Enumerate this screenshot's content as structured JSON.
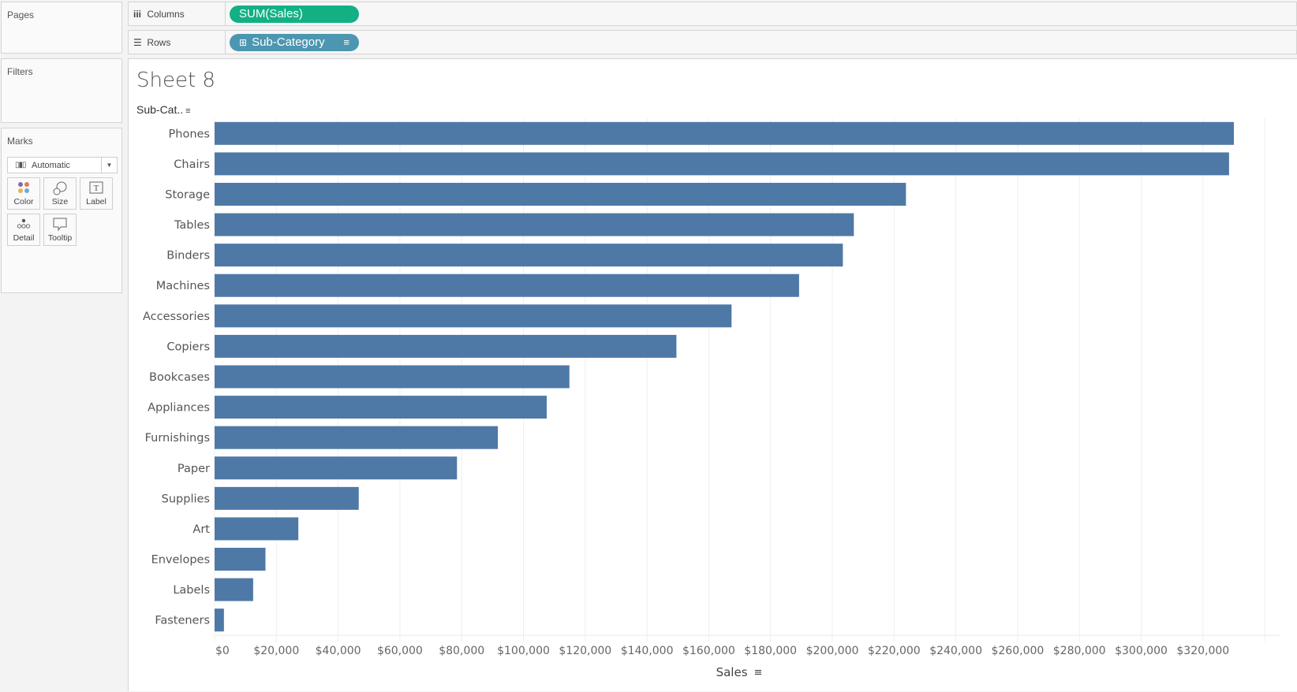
{
  "left_panel": {
    "pages_title": "Pages",
    "filters_title": "Filters",
    "marks_title": "Marks",
    "mark_type": "Automatic",
    "mark_buttons": [
      {
        "label": "Color",
        "icon": "color-icon"
      },
      {
        "label": "Size",
        "icon": "size-icon"
      },
      {
        "label": "Label",
        "icon": "label-icon"
      },
      {
        "label": "Detail",
        "icon": "detail-icon"
      },
      {
        "label": "Tooltip",
        "icon": "tooltip-icon"
      }
    ]
  },
  "shelves": {
    "columns_label": "Columns",
    "columns_pill": "SUM(Sales)",
    "rows_label": "Rows",
    "rows_pill": "Sub-Category"
  },
  "colors": {
    "bar": "#4e79a7",
    "columns_pill": "#13b084",
    "rows_pill": "#4d96b1"
  },
  "sheet": {
    "title": "Sheet 8",
    "row_header": "Sub-Cat.."
  },
  "chart_data": {
    "type": "bar",
    "orientation": "horizontal",
    "title": "Sheet 8",
    "xlabel": "Sales",
    "ylabel": "Sub-Category",
    "categories": [
      "Phones",
      "Chairs",
      "Storage",
      "Tables",
      "Binders",
      "Machines",
      "Accessories",
      "Copiers",
      "Bookcases",
      "Appliances",
      "Furnishings",
      "Paper",
      "Supplies",
      "Art",
      "Envelopes",
      "Labels",
      "Fasteners"
    ],
    "values": [
      330007,
      328449,
      223844,
      206966,
      203413,
      189239,
      167380,
      149528,
      114880,
      107532,
      91705,
      78479,
      46674,
      27119,
      16476,
      12486,
      3024
    ],
    "xlim": [
      0,
      340000
    ],
    "xticks": [
      0,
      20000,
      40000,
      60000,
      80000,
      100000,
      120000,
      140000,
      160000,
      180000,
      200000,
      220000,
      240000,
      260000,
      280000,
      300000,
      320000
    ],
    "xtick_labels": [
      "$0",
      "$20,000",
      "$40,000",
      "$60,000",
      "$80,000",
      "$100,000",
      "$120,000",
      "$140,000",
      "$160,000",
      "$180,000",
      "$200,000",
      "$220,000",
      "$240,000",
      "$260,000",
      "$280,000",
      "$300,000",
      "$320,000"
    ],
    "grid": true,
    "legend": "none"
  }
}
